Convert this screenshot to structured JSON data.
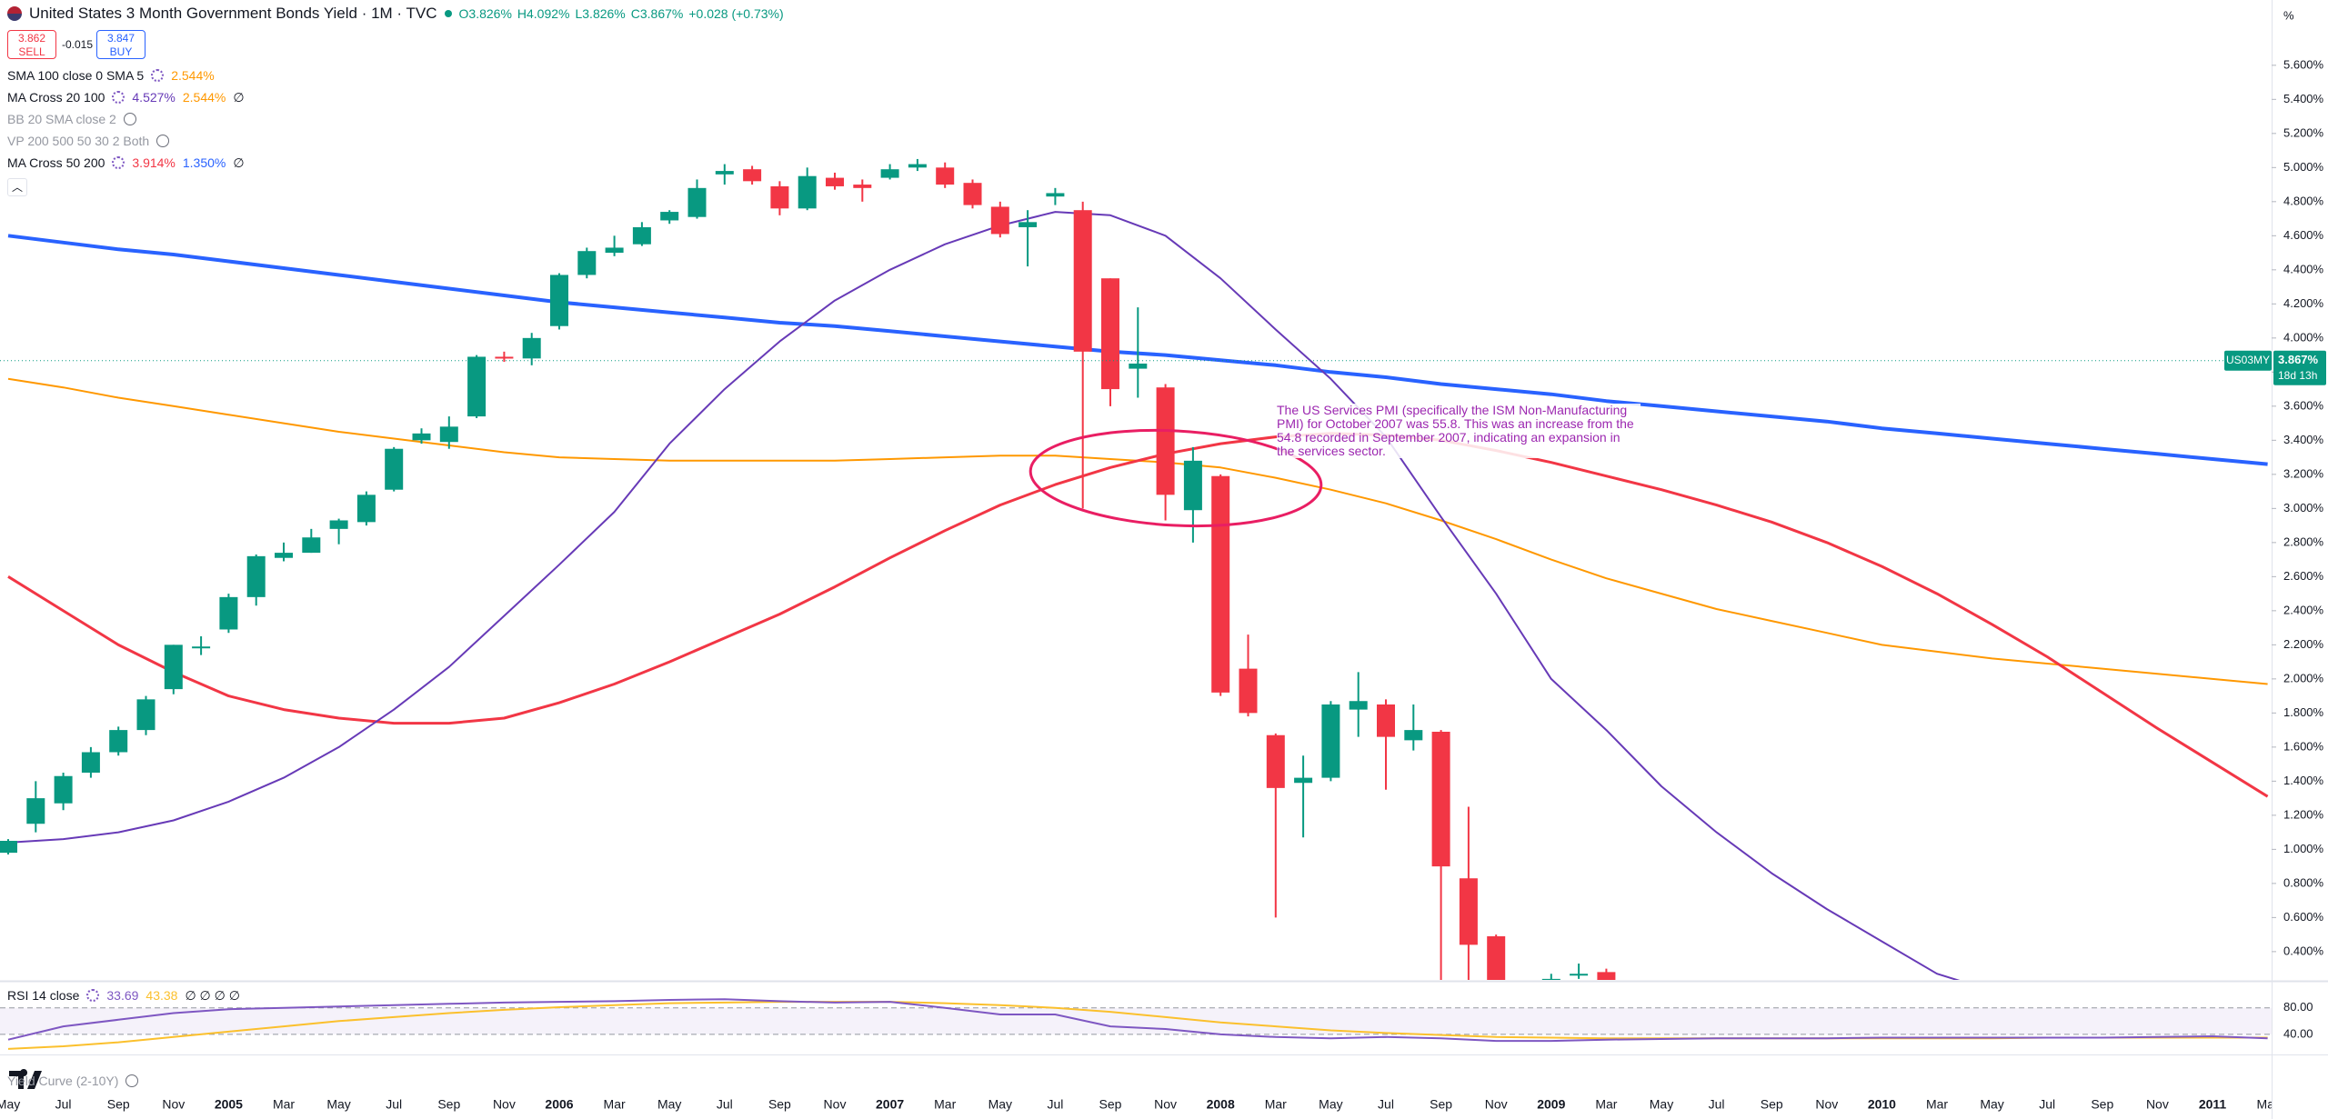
{
  "header": {
    "title": "United States 3 Month Government Bonds Yield · 1M · TVC",
    "ohlc": [
      "O3.826%",
      "H4.092%",
      "L3.826%",
      "C3.867%",
      "+0.028 (+0.73%)"
    ]
  },
  "trade": {
    "sell_price": "3.862",
    "sell_label": "SELL",
    "spread": "-0.015",
    "buy_price": "3.847",
    "buy_label": "BUY"
  },
  "indicators": [
    {
      "name": "SMA 100 close 0 SMA 5",
      "values": [
        "2.544%"
      ],
      "colors": [
        "#ff9800"
      ],
      "hidden": false
    },
    {
      "name": "MA Cross 20 100",
      "values": [
        "4.527%",
        "2.544%",
        "∅"
      ],
      "colors": [
        "#673ab7",
        "#ff9800",
        "#131722"
      ],
      "hidden": false
    },
    {
      "name": "BB 20 SMA close 2",
      "values": [],
      "colors": [],
      "hidden": true
    },
    {
      "name": "VP 200 500 50 30 2 Both",
      "values": [],
      "colors": [],
      "hidden": true
    },
    {
      "name": "MA Cross 50 200",
      "values": [
        "3.914%",
        "1.350%",
        "∅"
      ],
      "colors": [
        "#f23645",
        "#2962ff",
        "#131722"
      ],
      "hidden": false
    }
  ],
  "chart_data": [
    {
      "type": "candlestick",
      "unit": "%",
      "time_labels": [
        "May",
        "Jul",
        "Sep",
        "Nov",
        "2005",
        "Mar",
        "May",
        "Jul",
        "Sep",
        "Nov",
        "2006",
        "Mar",
        "May",
        "Jul",
        "Sep",
        "Nov",
        "2007",
        "Mar",
        "May",
        "Jul",
        "Sep",
        "Nov",
        "2008",
        "Mar",
        "May",
        "Jul",
        "Sep",
        "Nov",
        "2009",
        "Mar",
        "May",
        "Jul",
        "Sep",
        "Nov",
        "2010",
        "Mar",
        "May",
        "Jul",
        "Sep",
        "Nov",
        "2011",
        "Mar"
      ],
      "open": [
        0.98,
        1.15,
        1.27,
        1.45,
        1.57,
        1.7,
        1.94,
        2.18,
        2.29,
        2.48,
        2.71,
        2.74,
        2.88,
        2.92,
        3.11,
        3.4,
        3.39,
        3.54,
        3.89,
        3.88,
        4.07,
        4.37,
        4.5,
        4.55,
        4.69,
        4.71,
        4.96,
        4.99,
        4.89,
        4.76,
        4.94,
        4.9,
        4.94,
        5.0,
        5.0,
        4.91,
        4.77,
        4.65,
        4.83,
        4.75,
        4.35,
        3.82,
        3.71,
        2.99,
        3.19,
        2.06,
        1.67,
        1.39,
        1.42,
        1.82,
        1.85,
        1.64,
        1.69,
        0.83,
        0.49,
        0.03,
        0.11,
        0.27,
        0.28
      ],
      "high": [
        1.06,
        1.4,
        1.45,
        1.6,
        1.72,
        1.9,
        2.2,
        2.25,
        2.5,
        2.73,
        2.8,
        2.88,
        2.94,
        3.1,
        3.36,
        3.47,
        3.54,
        3.9,
        3.92,
        4.03,
        4.38,
        4.53,
        4.6,
        4.68,
        4.75,
        4.93,
        5.02,
        5.01,
        4.92,
        5.0,
        4.97,
        4.93,
        5.02,
        5.05,
        5.03,
        4.93,
        4.8,
        4.75,
        4.88,
        4.8,
        4.35,
        4.18,
        3.73,
        3.36,
        3.2,
        2.26,
        1.68,
        1.55,
        1.87,
        2.04,
        1.88,
        1.85,
        1.7,
        1.25,
        0.5,
        0.12,
        0.27,
        0.33,
        0.3
      ],
      "low": [
        0.97,
        1.1,
        1.23,
        1.42,
        1.55,
        1.67,
        1.91,
        2.14,
        2.27,
        2.43,
        2.69,
        2.74,
        2.79,
        2.9,
        3.1,
        3.38,
        3.35,
        3.53,
        3.86,
        3.84,
        4.05,
        4.35,
        4.48,
        4.54,
        4.67,
        4.7,
        4.9,
        4.9,
        4.72,
        4.75,
        4.87,
        4.8,
        4.93,
        4.98,
        4.88,
        4.76,
        4.59,
        4.42,
        4.78,
        3.0,
        3.6,
        3.65,
        2.93,
        2.8,
        1.9,
        1.78,
        0.6,
        1.07,
        1.4,
        1.66,
        1.35,
        1.58,
        0.02,
        0.0,
        0.0,
        0.0,
        0.02,
        0.24,
        0.17
      ],
      "close": [
        1.05,
        1.3,
        1.43,
        1.57,
        1.7,
        1.88,
        2.2,
        2.19,
        2.48,
        2.72,
        2.74,
        2.83,
        2.93,
        3.08,
        3.35,
        3.44,
        3.48,
        3.89,
        3.88,
        4.0,
        4.37,
        4.51,
        4.53,
        4.65,
        4.74,
        4.88,
        4.98,
        4.92,
        4.76,
        4.95,
        4.89,
        4.88,
        4.99,
        5.02,
        4.9,
        4.78,
        4.61,
        4.68,
        4.85,
        3.92,
        3.7,
        3.85,
        3.08,
        3.28,
        1.92,
        1.8,
        1.36,
        1.42,
        1.85,
        1.87,
        1.66,
        1.7,
        0.9,
        0.44,
        0.03,
        0.08,
        0.24,
        0.27,
        0.21
      ],
      "up_color": "#089981",
      "down_color": "#f23645",
      "ylim": [
        0.234,
        5.983
      ],
      "yticks": [
        {
          "value": 0.4,
          "label": "0.400%"
        },
        {
          "value": 0.6,
          "label": "0.600%"
        },
        {
          "value": 0.8,
          "label": "0.800%"
        },
        {
          "value": 1.0,
          "label": "1.000%"
        },
        {
          "value": 1.2,
          "label": "1.200%"
        },
        {
          "value": 1.4,
          "label": "1.400%"
        },
        {
          "value": 1.6,
          "label": "1.600%"
        },
        {
          "value": 1.8,
          "label": "1.800%"
        },
        {
          "value": 2.0,
          "label": "2.000%"
        },
        {
          "value": 2.2,
          "label": "2.200%"
        },
        {
          "value": 2.4,
          "label": "2.400%"
        },
        {
          "value": 2.6,
          "label": "2.600%"
        },
        {
          "value": 2.8,
          "label": "2.800%"
        },
        {
          "value": 3.0,
          "label": "3.000%"
        },
        {
          "value": 3.2,
          "label": "3.200%"
        },
        {
          "value": 3.4,
          "label": "3.400%"
        },
        {
          "value": 3.6,
          "label": "3.600%"
        },
        {
          "value": 3.8,
          "label": "3.800%"
        },
        {
          "value": 4.0,
          "label": "4.000%"
        },
        {
          "value": 4.2,
          "label": "4.200%"
        },
        {
          "value": 4.4,
          "label": "4.400%"
        },
        {
          "value": 4.6,
          "label": "4.600%"
        },
        {
          "value": 4.8,
          "label": "4.800%"
        },
        {
          "value": 5.0,
          "label": "5.000%"
        },
        {
          "value": 5.2,
          "label": "5.200%"
        },
        {
          "value": 5.4,
          "label": "5.400%"
        },
        {
          "value": 5.6,
          "label": "5.600%"
        }
      ],
      "lines": [
        {
          "color": "#2962ff",
          "values": [
            4.6,
            4.56,
            4.52,
            4.49,
            4.45,
            4.41,
            4.37,
            4.33,
            4.29,
            4.25,
            4.21,
            4.18,
            4.15,
            4.12,
            4.09,
            4.07,
            4.04,
            4.01,
            3.98,
            3.95,
            3.92,
            3.9,
            3.87,
            3.84,
            3.8,
            3.77,
            3.73,
            3.7,
            3.67,
            3.63,
            3.6,
            3.57,
            3.54,
            3.51,
            3.47,
            3.44,
            3.41,
            3.38,
            3.35,
            3.32,
            3.29,
            3.26
          ]
        },
        {
          "color": "#ff9800",
          "values": [
            3.76,
            3.71,
            3.65,
            3.6,
            3.55,
            3.5,
            3.45,
            3.41,
            3.37,
            3.33,
            3.3,
            3.29,
            3.28,
            3.28,
            3.28,
            3.28,
            3.29,
            3.3,
            3.31,
            3.31,
            3.29,
            3.27,
            3.24,
            3.18,
            3.11,
            3.03,
            2.93,
            2.82,
            2.7,
            2.59,
            2.5,
            2.41,
            2.34,
            2.27,
            2.2,
            2.16,
            2.12,
            2.09,
            2.06,
            2.03,
            2.0,
            1.97
          ]
        },
        {
          "color": "#f23645",
          "values": [
            2.6,
            2.4,
            2.2,
            2.04,
            1.9,
            1.82,
            1.77,
            1.74,
            1.74,
            1.77,
            1.86,
            1.97,
            2.1,
            2.24,
            2.38,
            2.54,
            2.71,
            2.87,
            3.02,
            3.14,
            3.24,
            3.32,
            3.38,
            3.42,
            3.44,
            3.43,
            3.4,
            3.34,
            3.27,
            3.19,
            3.11,
            3.02,
            2.92,
            2.8,
            2.66,
            2.5,
            2.32,
            2.13,
            1.92,
            1.71,
            1.51,
            1.31
          ]
        },
        {
          "color": "#673ab7",
          "values": [
            1.04,
            1.06,
            1.1,
            1.17,
            1.28,
            1.42,
            1.6,
            1.82,
            2.07,
            2.37,
            2.67,
            2.98,
            3.38,
            3.7,
            3.98,
            4.22,
            4.4,
            4.55,
            4.66,
            4.74,
            4.72,
            4.6,
            4.35,
            4.05,
            3.76,
            3.42,
            2.95,
            2.5,
            2.0,
            1.7,
            1.37,
            1.1,
            0.86,
            0.65,
            0.46,
            0.27,
            0.17,
            null,
            null,
            null,
            null,
            null
          ]
        }
      ],
      "last_price": {
        "symbol": "US03MY",
        "value": 3.867,
        "label": "3.867%",
        "countdown": "18d 13h"
      },
      "annotation": "The US Services PMI (specifically the ISM Non-Manufacturing PMI) for October 2007 was 55.8. This was an increase from the 54.8 recorded in September 2007, indicating an expansion in the services sector."
    },
    {
      "type": "line",
      "title": "RSI 14 close",
      "flags": "∅ ∅ ∅ ∅",
      "footer_indicator": "Yield Curve (2-10Y)",
      "ylim": [
        11,
        118
      ],
      "yticks": [
        {
          "value": 80,
          "label": "80.00"
        },
        {
          "value": 40,
          "label": "40.00"
        }
      ],
      "series": [
        {
          "color": "#7e57c2",
          "last_label": "33.69",
          "values": [
            32,
            52,
            62,
            72,
            78,
            80,
            82,
            84,
            86,
            88,
            89,
            90,
            92,
            93,
            90,
            88,
            89,
            80,
            70,
            70,
            52,
            48,
            40,
            36,
            34,
            36,
            34,
            30,
            30,
            32,
            33,
            34,
            34,
            34,
            35,
            35,
            35,
            35,
            35,
            36,
            37,
            34
          ]
        },
        {
          "color": "#fbc02d",
          "last_label": "43.38",
          "values": [
            18,
            22,
            28,
            36,
            44,
            52,
            60,
            66,
            72,
            77,
            81,
            84,
            87,
            88,
            89,
            89,
            89,
            87,
            84,
            80,
            74,
            66,
            58,
            52,
            46,
            42,
            39,
            36,
            35,
            34,
            34,
            34,
            34,
            34,
            34,
            34,
            34,
            35,
            35,
            35,
            35,
            35
          ]
        }
      ]
    }
  ]
}
